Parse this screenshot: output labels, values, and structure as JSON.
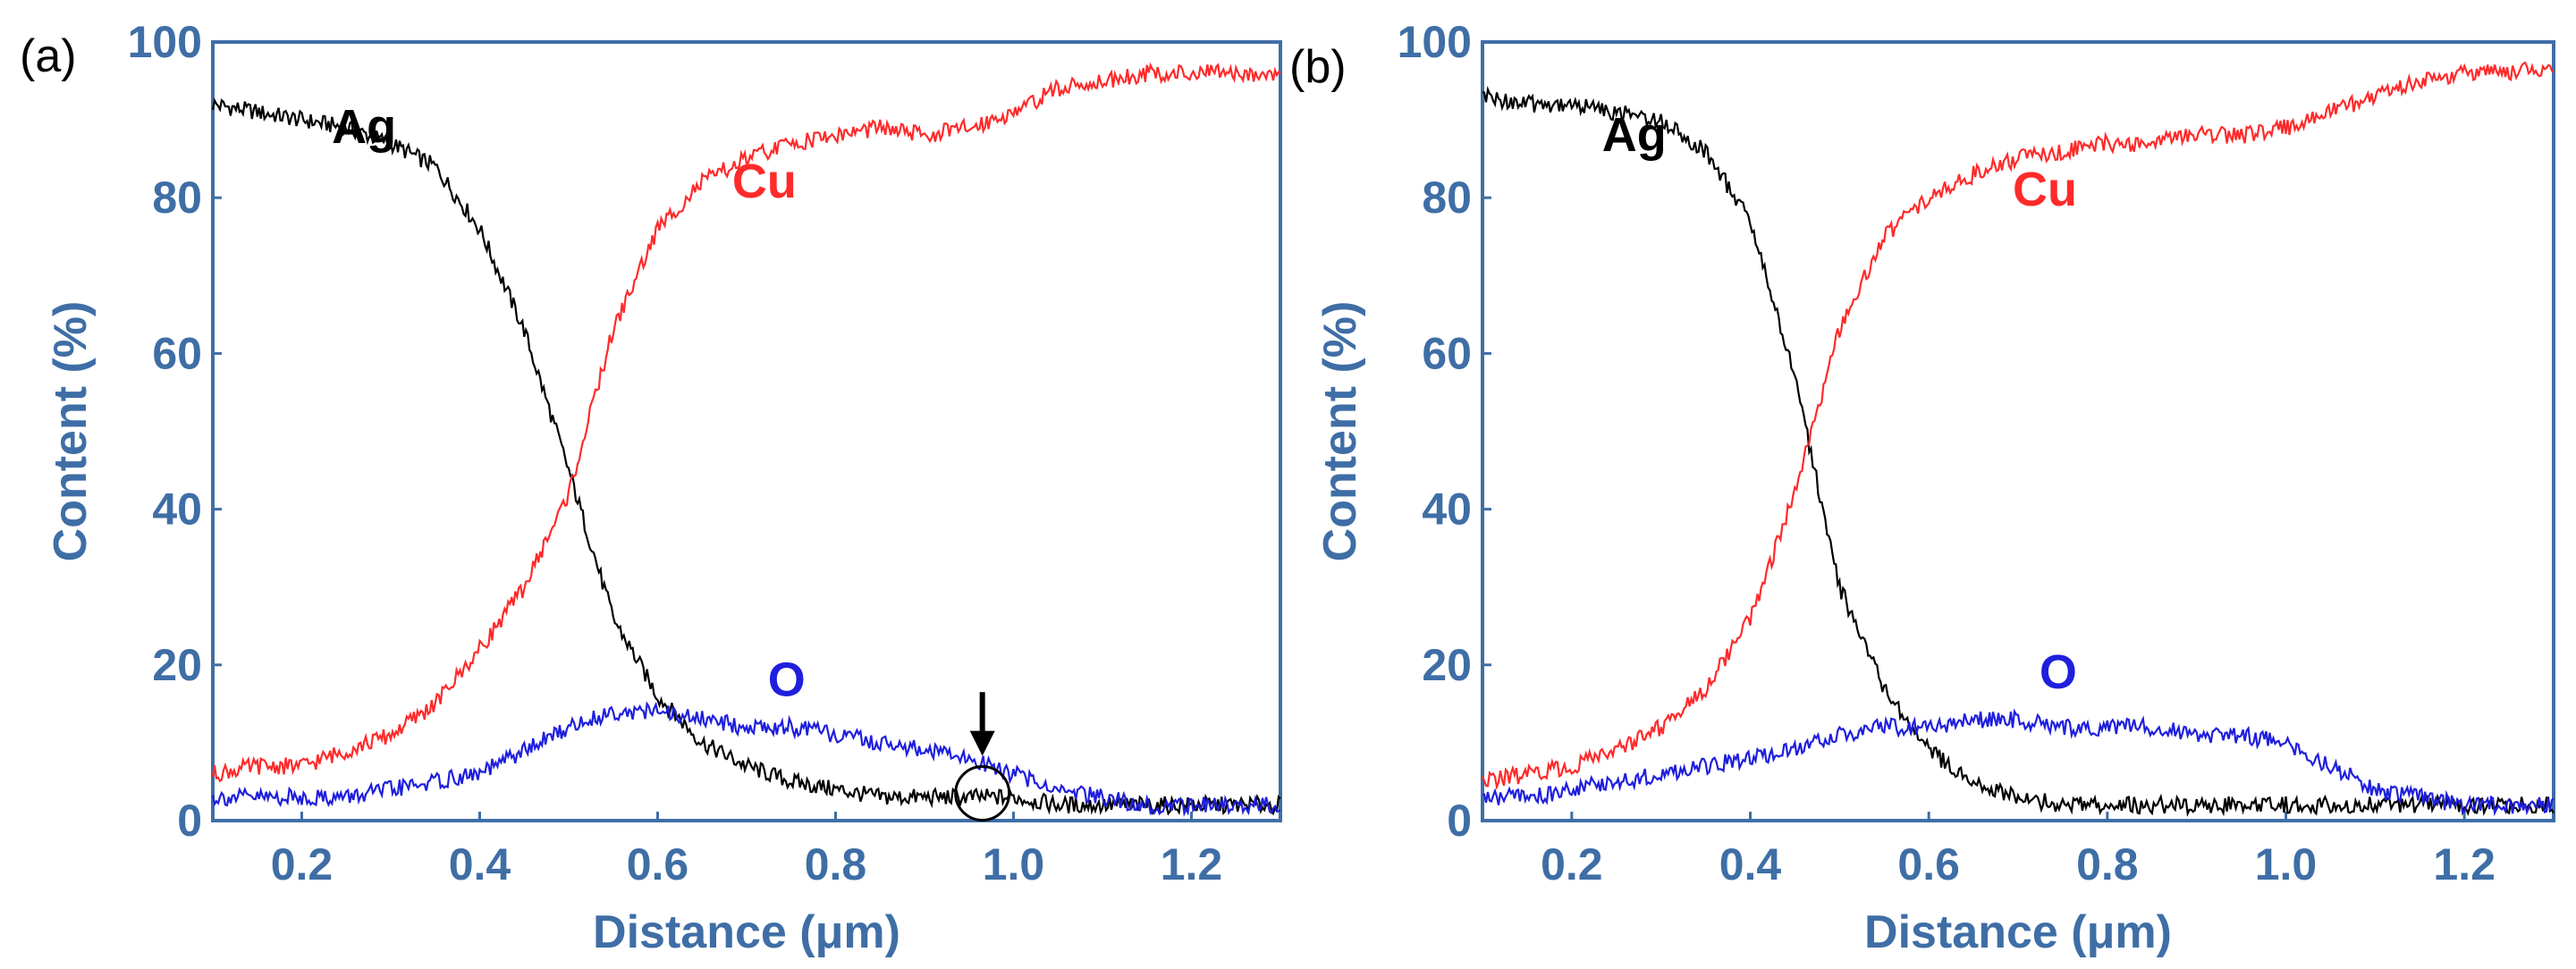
{
  "colors": {
    "axis": "#3f6ea6",
    "Ag": "#000000",
    "Cu": "#ff2a2a",
    "O": "#1f1fdd"
  },
  "chart_data": [
    {
      "type": "line",
      "panel_label": "(a)",
      "xlabel": "Distance (μm)",
      "ylabel": "Content (%)",
      "xlim": [
        0.1,
        1.3
      ],
      "ylim": [
        0,
        100
      ],
      "xticks": [
        0.2,
        0.4,
        0.6,
        0.8,
        1.0,
        1.2
      ],
      "xtick_labels": [
        "0.2",
        "0.4",
        "0.6",
        "0.8",
        "1.0",
        "1.2"
      ],
      "yticks": [
        0,
        20,
        40,
        60,
        80,
        100
      ],
      "ytick_labels": [
        "0",
        "20",
        "40",
        "60",
        "80",
        "100"
      ],
      "series": [
        {
          "name": "Ag",
          "x": [
            0.1,
            0.15,
            0.2,
            0.25,
            0.3,
            0.35,
            0.4,
            0.45,
            0.5,
            0.55,
            0.6,
            0.65,
            0.7,
            0.75,
            0.8,
            0.85,
            0.9,
            0.95,
            1.0,
            1.05,
            1.1,
            1.15,
            1.2,
            1.25,
            1.3
          ],
          "y": [
            92,
            91,
            90,
            89,
            87,
            84,
            76,
            63,
            45,
            26,
            16,
            10,
            7,
            5,
            4,
            3,
            3,
            3,
            3,
            2,
            2,
            2,
            2,
            2,
            2
          ]
        },
        {
          "name": "Cu",
          "x": [
            0.1,
            0.15,
            0.2,
            0.25,
            0.3,
            0.35,
            0.4,
            0.45,
            0.5,
            0.55,
            0.6,
            0.65,
            0.7,
            0.75,
            0.8,
            0.85,
            0.9,
            0.95,
            1.0,
            1.05,
            1.1,
            1.15,
            1.2,
            1.25,
            1.3
          ],
          "y": [
            6,
            7,
            7,
            9,
            11,
            15,
            22,
            30,
            42,
            63,
            76,
            82,
            85,
            87,
            88,
            89,
            88,
            89,
            91,
            94,
            95,
            96,
            96,
            96,
            96
          ]
        },
        {
          "name": "O",
          "x": [
            0.1,
            0.15,
            0.2,
            0.25,
            0.3,
            0.35,
            0.4,
            0.45,
            0.5,
            0.55,
            0.6,
            0.65,
            0.7,
            0.75,
            0.8,
            0.85,
            0.9,
            0.95,
            1.0,
            1.05,
            1.1,
            1.15,
            1.2,
            1.25,
            1.3
          ],
          "y": [
            3,
            3,
            3,
            3,
            4,
            5,
            6,
            9,
            12,
            14,
            14,
            13,
            12,
            12,
            11,
            10,
            9,
            8,
            6,
            4,
            3,
            2,
            2,
            2,
            2
          ]
        }
      ],
      "annotations": [
        {
          "type": "arrow",
          "x": 0.965,
          "y": 12,
          "label": "arrow"
        },
        {
          "type": "circle",
          "x": 0.965,
          "y": 3.5,
          "label": "circle"
        }
      ]
    },
    {
      "type": "line",
      "panel_label": "(b)",
      "xlabel": "Distance (μm)",
      "ylabel": "Content (%)",
      "xlim": [
        0.1,
        1.3
      ],
      "ylim": [
        0,
        100
      ],
      "xticks": [
        0.2,
        0.4,
        0.6,
        0.8,
        1.0,
        1.2
      ],
      "xtick_labels": [
        "0.2",
        "0.4",
        "0.6",
        "0.8",
        "1.0",
        "1.2"
      ],
      "yticks": [
        0,
        20,
        40,
        60,
        80,
        100
      ],
      "ytick_labels": [
        "0",
        "20",
        "40",
        "60",
        "80",
        "100"
      ],
      "series": [
        {
          "name": "Ag",
          "x": [
            0.1,
            0.15,
            0.2,
            0.25,
            0.3,
            0.35,
            0.4,
            0.45,
            0.5,
            0.55,
            0.6,
            0.65,
            0.7,
            0.75,
            0.8,
            0.85,
            0.9,
            0.95,
            1.0,
            1.05,
            1.1,
            1.15,
            1.2,
            1.25,
            1.3
          ],
          "y": [
            93,
            92,
            92,
            91,
            90,
            86,
            77,
            57,
            30,
            17,
            9,
            5,
            3,
            2,
            2,
            2,
            2,
            2,
            2,
            2,
            2,
            2,
            2,
            2,
            2
          ]
        },
        {
          "name": "Cu",
          "x": [
            0.1,
            0.15,
            0.2,
            0.25,
            0.3,
            0.35,
            0.4,
            0.45,
            0.5,
            0.55,
            0.6,
            0.65,
            0.7,
            0.75,
            0.8,
            0.85,
            0.9,
            0.95,
            1.0,
            1.05,
            1.1,
            1.15,
            1.2,
            1.25,
            1.3
          ],
          "y": [
            5,
            6,
            7,
            9,
            12,
            17,
            26,
            42,
            63,
            75,
            80,
            83,
            85,
            86,
            87,
            87,
            88,
            88,
            89,
            91,
            93,
            95,
            96,
            96,
            97
          ]
        },
        {
          "name": "O",
          "x": [
            0.1,
            0.15,
            0.2,
            0.25,
            0.3,
            0.35,
            0.4,
            0.45,
            0.5,
            0.55,
            0.6,
            0.65,
            0.7,
            0.75,
            0.8,
            0.85,
            0.9,
            0.95,
            1.0,
            1.05,
            1.1,
            1.15,
            1.2,
            1.25,
            1.3
          ],
          "y": [
            3,
            3,
            4,
            5,
            6,
            7,
            8,
            9,
            11,
            12,
            12,
            13,
            13,
            12,
            12,
            12,
            11,
            11,
            10,
            7,
            4,
            3,
            2,
            2,
            2
          ]
        }
      ],
      "annotations": []
    }
  ]
}
